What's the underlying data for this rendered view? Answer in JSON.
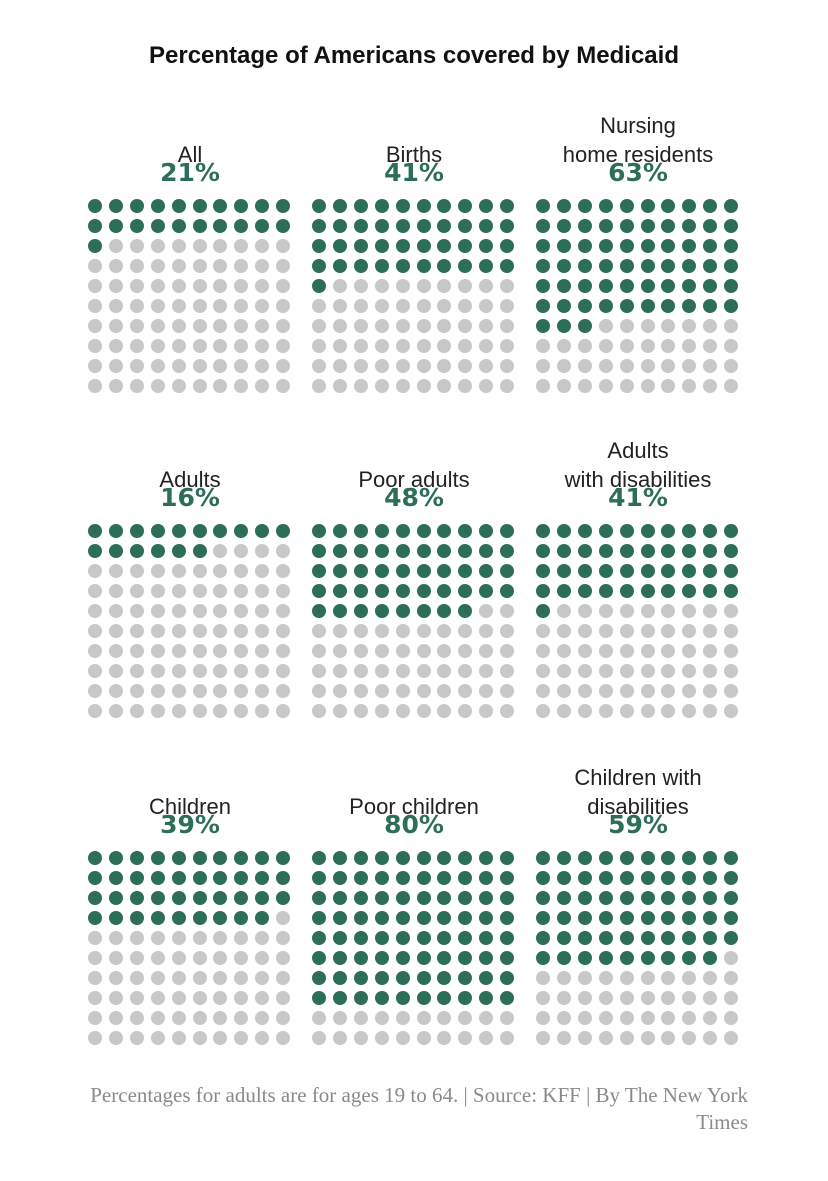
{
  "title": "Percentage of Americans covered by Medicaid",
  "colors": {
    "filled": "#2d6e5b",
    "empty": "#c8c8c8"
  },
  "chart_data": {
    "type": "waffle",
    "title": "Percentage of Americans covered by Medicaid",
    "grid": "10x10",
    "panels": [
      {
        "label": "All",
        "value": 21,
        "value_label": "21%"
      },
      {
        "label": "Births",
        "value": 41,
        "value_label": "41%"
      },
      {
        "label": "Nursing home residents",
        "value": 63,
        "value_label": "63%"
      },
      {
        "label": "Adults",
        "value": 16,
        "value_label": "16%"
      },
      {
        "label": "Poor adults",
        "value": 48,
        "value_label": "48%"
      },
      {
        "label": "Adults with disabilities",
        "value": 41,
        "value_label": "41%"
      },
      {
        "label": "Children",
        "value": 39,
        "value_label": "39%"
      },
      {
        "label": "Poor children",
        "value": 80,
        "value_label": "80%"
      },
      {
        "label": "Children with disabilities",
        "value": 59,
        "value_label": "59%"
      }
    ]
  },
  "footer": "Percentages for adults are for ages 19 to 64. | Source: KFF | By The New York Times"
}
